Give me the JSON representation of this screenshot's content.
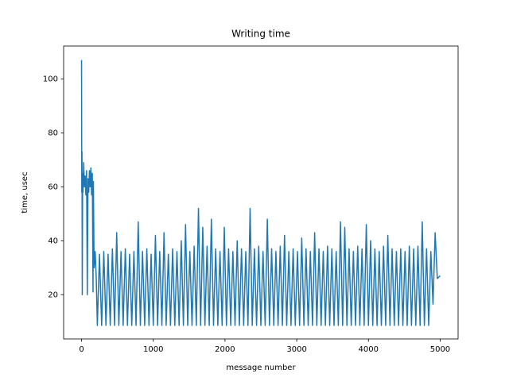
{
  "chart_data": {
    "type": "line",
    "title": "Writing time",
    "xlabel": "message number",
    "ylabel": "time, usec",
    "xlim": [
      -250,
      5250
    ],
    "ylim": [
      3.6,
      112.2
    ],
    "xticks": [
      0,
      1000,
      2000,
      3000,
      4000,
      5000
    ],
    "yticks": [
      20,
      40,
      60,
      80,
      100
    ],
    "grid": false,
    "series": [
      {
        "color": "#1f77b4",
        "x": [
          0,
          3,
          6,
          10,
          15,
          20,
          30,
          40,
          50,
          60,
          70,
          80,
          90,
          100,
          110,
          120,
          130,
          140,
          150,
          160,
          165,
          175,
          190,
          205,
          220,
          250,
          280,
          310,
          340,
          370,
          400,
          430,
          460,
          490,
          520,
          550,
          580,
          610,
          640,
          670,
          700,
          730,
          760,
          790,
          820,
          850,
          880,
          910,
          940,
          970,
          1000,
          1030,
          1060,
          1090,
          1120,
          1150,
          1180,
          1210,
          1240,
          1270,
          1300,
          1330,
          1360,
          1390,
          1420,
          1450,
          1480,
          1510,
          1540,
          1570,
          1600,
          1630,
          1660,
          1690,
          1720,
          1750,
          1780,
          1810,
          1840,
          1870,
          1900,
          1930,
          1960,
          1990,
          2020,
          2050,
          2080,
          2110,
          2140,
          2170,
          2200,
          2230,
          2260,
          2290,
          2320,
          2350,
          2380,
          2410,
          2440,
          2470,
          2500,
          2530,
          2560,
          2590,
          2620,
          2650,
          2680,
          2710,
          2740,
          2770,
          2800,
          2830,
          2860,
          2890,
          2920,
          2950,
          2980,
          3010,
          3040,
          3070,
          3100,
          3130,
          3160,
          3190,
          3220,
          3250,
          3280,
          3310,
          3340,
          3370,
          3400,
          3430,
          3460,
          3490,
          3520,
          3550,
          3580,
          3610,
          3640,
          3670,
          3700,
          3730,
          3760,
          3790,
          3820,
          3850,
          3880,
          3910,
          3940,
          3970,
          4000,
          4030,
          4060,
          4090,
          4120,
          4150,
          4180,
          4210,
          4240,
          4270,
          4300,
          4330,
          4360,
          4390,
          4420,
          4450,
          4480,
          4510,
          4540,
          4570,
          4600,
          4630,
          4660,
          4690,
          4720,
          4750,
          4780,
          4810,
          4840,
          4870,
          4900,
          4930,
          4960,
          5000
        ],
        "values": [
          107,
          58,
          73,
          20,
          65,
          58,
          69,
          60,
          64,
          57,
          66,
          20,
          63,
          58,
          66,
          60,
          67,
          57,
          65,
          21,
          62,
          30,
          36,
          26,
          8.6,
          35,
          8.6,
          36,
          8.6,
          35,
          8.6,
          37,
          8.6,
          43,
          8.6,
          36,
          8.6,
          37,
          8.6,
          35,
          8.6,
          36,
          8.6,
          47,
          8.6,
          36,
          8.6,
          37,
          8.6,
          35,
          8.6,
          42,
          8.6,
          36,
          8.6,
          43,
          8.6,
          35,
          8.6,
          37,
          8.6,
          36,
          8.6,
          40,
          8.6,
          46,
          8.6,
          36,
          8.6,
          38,
          8.6,
          52,
          8.6,
          45,
          8.6,
          38,
          8.6,
          48,
          8.6,
          37,
          8.6,
          36,
          8.6,
          45,
          8.6,
          37,
          8.6,
          36,
          8.6,
          40,
          8.6,
          37,
          8.6,
          36,
          8.6,
          52,
          8.6,
          37,
          8.6,
          38,
          8.6,
          36,
          8.6,
          48,
          8.6,
          37,
          8.6,
          36,
          8.6,
          38,
          8.6,
          42,
          8.6,
          36,
          8.6,
          37,
          8.6,
          36,
          8.6,
          41,
          8.6,
          37,
          8.6,
          36,
          8.6,
          43,
          8.6,
          37,
          8.6,
          36,
          8.6,
          38,
          8.6,
          37,
          8.6,
          36,
          8.6,
          47,
          8.6,
          45,
          8.6,
          37,
          8.6,
          36,
          8.6,
          38,
          8.6,
          37,
          8.6,
          46,
          8.6,
          40,
          8.6,
          37,
          8.6,
          36,
          8.6,
          38,
          8.6,
          42,
          8.6,
          37,
          8.6,
          36,
          8.6,
          37,
          8.6,
          36,
          8.6,
          38,
          8.6,
          37,
          8.6,
          38,
          8.6,
          47,
          8.6,
          37,
          8.6,
          36,
          16.5,
          43,
          26,
          27
        ]
      }
    ]
  }
}
